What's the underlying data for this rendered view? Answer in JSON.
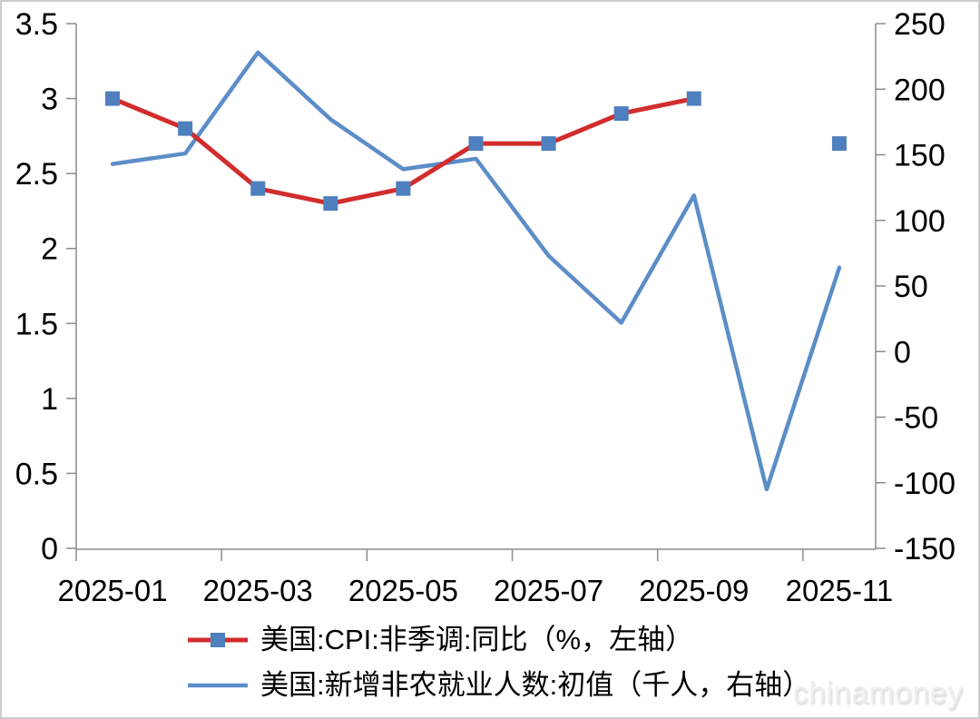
{
  "chart_data": {
    "type": "line",
    "title": "",
    "categories": [
      "2025-01",
      "2025-02",
      "2025-03",
      "2025-04",
      "2025-05",
      "2025-06",
      "2025-07",
      "2025-08",
      "2025-09",
      "2025-10",
      "2025-11"
    ],
    "x_tick_labels": [
      "2025-01",
      "2025-03",
      "2025-05",
      "2025-07",
      "2025-09",
      "2025-11"
    ],
    "left_axis": {
      "min": 0,
      "max": 3.5,
      "step": 0.5,
      "tick_labels": [
        "3.5",
        "3",
        "2.5",
        "2",
        "1.5",
        "1",
        "0.5",
        "0"
      ]
    },
    "right_axis": {
      "min": -150,
      "max": 250,
      "step": 50,
      "tick_labels": [
        "250",
        "200",
        "150",
        "100",
        "50",
        "0",
        "-50",
        "-100",
        "-150"
      ]
    },
    "grid": false,
    "legend_position": "bottom-left",
    "series": [
      {
        "name": "美国:CPI:非季调:同比（%，左轴）",
        "axis": "left",
        "color": "#d22c2c",
        "line_width": 5,
        "marker": "square",
        "marker_size": 16,
        "marker_color": "#4e7fbe",
        "values": [
          3.0,
          2.8,
          2.4,
          2.3,
          2.4,
          2.7,
          2.7,
          2.9,
          3.0,
          null,
          2.7
        ]
      },
      {
        "name": "美国:新增非农就业人数:初值（千人，右轴）",
        "axis": "right",
        "color": "#5c8dc8",
        "line_width": 4.5,
        "marker": "none",
        "marker_size": 0,
        "marker_color": "#5c8dc8",
        "values": [
          143,
          151,
          228,
          177,
          139,
          147,
          73,
          22,
          119,
          -105,
          64
        ]
      }
    ]
  },
  "watermark": "chinamoney"
}
